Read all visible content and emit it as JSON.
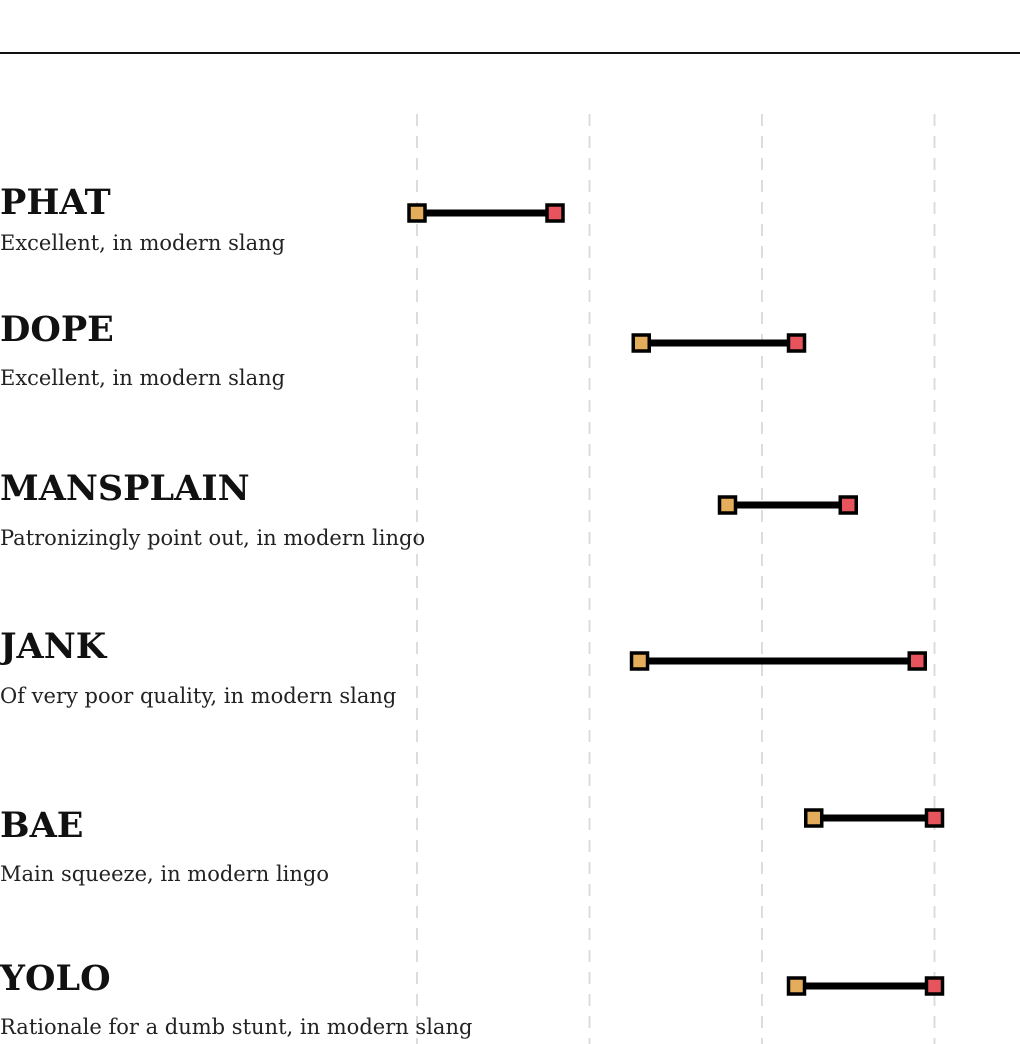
{
  "chart_data": {
    "type": "dumbbell",
    "x": {
      "domain": [
        0,
        4
      ],
      "gridlines": [
        0,
        1,
        2,
        3
      ]
    },
    "colors": {
      "start": "#e3ad5c",
      "end": "#e8545d",
      "line": "#000000",
      "grid": "#dcdcdc"
    },
    "items": [
      {
        "term": "PHAT",
        "definition": "Excellent, in modern slang",
        "start": 0.0,
        "end": 0.8
      },
      {
        "term": "DOPE",
        "definition": "Excellent, in modern slang",
        "start": 1.3,
        "end": 2.2
      },
      {
        "term": "MANSPLAIN",
        "definition": "Patronizingly point out, in modern lingo",
        "start": 1.8,
        "end": 2.5
      },
      {
        "term": "JANK",
        "definition": "Of very poor quality, in modern slang",
        "start": 1.29,
        "end": 2.9
      },
      {
        "term": "BAE",
        "definition": "Main squeeze, in modern lingo",
        "start": 2.3,
        "end": 3.0
      },
      {
        "term": "YOLO",
        "definition": "Rationale for a dumb stunt, in modern slang",
        "start": 2.2,
        "end": 3.0
      }
    ]
  }
}
